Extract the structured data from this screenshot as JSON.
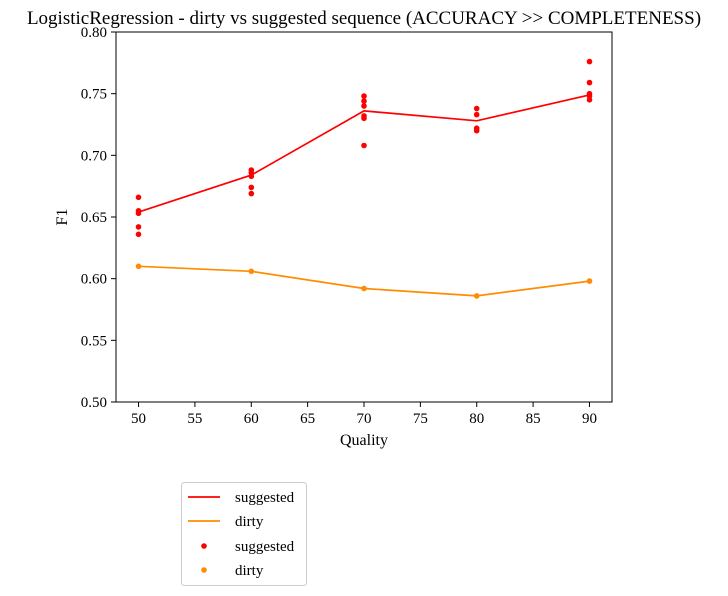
{
  "chart_data": {
    "type": "line",
    "title": "LogisticRegression - dirty vs suggested sequence (ACCURACY >> COMPLETENESS)",
    "xlabel": "Quality",
    "ylabel": "F1",
    "xlim": [
      48,
      92
    ],
    "ylim": [
      0.5,
      0.8
    ],
    "x_ticks": [
      50,
      55,
      60,
      65,
      70,
      75,
      80,
      85,
      90
    ],
    "y_ticks": [
      0.5,
      0.55,
      0.6,
      0.65,
      0.7,
      0.75,
      0.8
    ],
    "y_tick_labels": [
      "0.50",
      "0.55",
      "0.60",
      "0.65",
      "0.70",
      "0.75",
      "0.80"
    ],
    "grid": false,
    "legend_position": "below plot, left",
    "series": [
      {
        "name": "suggested",
        "kind": "line",
        "color": "#ff0000",
        "x": [
          50,
          60,
          70,
          80,
          90
        ],
        "y": [
          0.654,
          0.684,
          0.736,
          0.728,
          0.749
        ]
      },
      {
        "name": "dirty",
        "kind": "line",
        "color": "#ff8c00",
        "x": [
          50,
          60,
          70,
          80,
          90
        ],
        "y": [
          0.61,
          0.606,
          0.592,
          0.586,
          0.598
        ]
      },
      {
        "name": "suggested",
        "kind": "scatter",
        "color": "#ff0000",
        "points": [
          [
            50,
            0.666
          ],
          [
            50,
            0.655
          ],
          [
            50,
            0.653
          ],
          [
            50,
            0.642
          ],
          [
            50,
            0.636
          ],
          [
            60,
            0.688
          ],
          [
            60,
            0.686
          ],
          [
            60,
            0.683
          ],
          [
            60,
            0.674
          ],
          [
            60,
            0.669
          ],
          [
            70,
            0.748
          ],
          [
            70,
            0.744
          ],
          [
            70,
            0.74
          ],
          [
            70,
            0.732
          ],
          [
            70,
            0.73
          ],
          [
            70,
            0.708
          ],
          [
            80,
            0.738
          ],
          [
            80,
            0.733
          ],
          [
            80,
            0.722
          ],
          [
            80,
            0.72
          ],
          [
            90,
            0.776
          ],
          [
            90,
            0.759
          ],
          [
            90,
            0.75
          ],
          [
            90,
            0.748
          ],
          [
            90,
            0.745
          ]
        ]
      },
      {
        "name": "dirty",
        "kind": "scatter",
        "color": "#ff8c00",
        "points": [
          [
            50,
            0.61
          ],
          [
            60,
            0.606
          ],
          [
            70,
            0.592
          ],
          [
            80,
            0.586
          ],
          [
            90,
            0.598
          ]
        ]
      }
    ]
  }
}
